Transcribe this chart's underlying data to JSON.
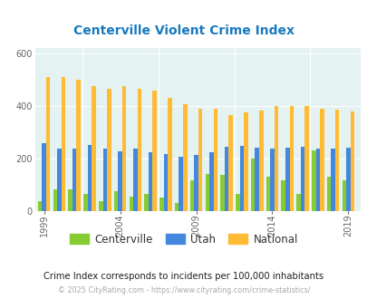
{
  "title": "Centerville Violent Crime Index",
  "title_color": "#1a7abf",
  "subtitle": "Crime Index corresponds to incidents per 100,000 inhabitants",
  "footer": "© 2025 CityRating.com - https://www.cityrating.com/crime-statistics/",
  "years_data": {
    "1999": {
      "c": 38,
      "u": 258,
      "n": 510
    },
    "2000": {
      "c": 80,
      "u": 237,
      "n": 510
    },
    "2001": {
      "c": 80,
      "u": 237,
      "n": 497
    },
    "2002": {
      "c": 65,
      "u": 250,
      "n": 473
    },
    "2003": {
      "c": 38,
      "u": 237,
      "n": 463
    },
    "2004": {
      "c": 75,
      "u": 228,
      "n": 473
    },
    "2005": {
      "c": 55,
      "u": 238,
      "n": 463
    },
    "2006": {
      "c": 65,
      "u": 222,
      "n": 457
    },
    "2007": {
      "c": 50,
      "u": 215,
      "n": 430
    },
    "2008": {
      "c": 30,
      "u": 207,
      "n": 407
    },
    "2009": {
      "c": 115,
      "u": 212,
      "n": 390
    },
    "2010": {
      "c": 140,
      "u": 222,
      "n": 387
    },
    "2011": {
      "c": 135,
      "u": 243,
      "n": 363
    },
    "2012": {
      "c": 65,
      "u": 247,
      "n": 375
    },
    "2013": {
      "c": 200,
      "u": 240,
      "n": 382
    },
    "2014": {
      "c": 130,
      "u": 237,
      "n": 397
    },
    "2015": {
      "c": 115,
      "u": 240,
      "n": 400
    },
    "2016": {
      "c": 65,
      "u": 242,
      "n": 397
    },
    "2017": {
      "c": 230,
      "u": 238,
      "n": 390
    },
    "2018": {
      "c": 130,
      "u": 237,
      "n": 385
    },
    "2019": {
      "c": 115,
      "u": 240,
      "n": 378
    }
  },
  "centerville_color": "#88cc33",
  "utah_color": "#4488dd",
  "national_color": "#ffbb33",
  "bg_color": "#e4f2f2",
  "ylim": [
    0,
    620
  ],
  "yticks": [
    0,
    200,
    400,
    600
  ],
  "figsize": [
    4.06,
    3.3
  ],
  "dpi": 100
}
